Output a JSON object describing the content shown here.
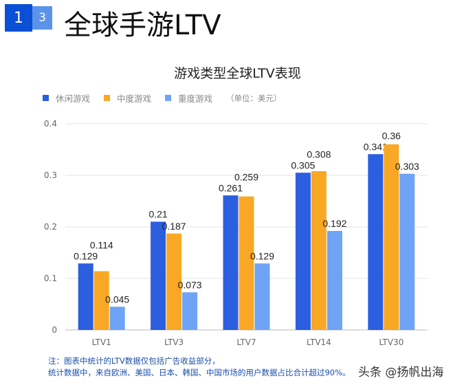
{
  "header": {
    "badge_1": "1",
    "badge_2": "3",
    "title": "全球手游LTV"
  },
  "chart_data": {
    "type": "bar",
    "title": "游戏类型全球LTV表现",
    "unit_note": "（单位：美元）",
    "categories": [
      "LTV1",
      "LTV3",
      "LTV7",
      "LTV14",
      "LTV30"
    ],
    "series": [
      {
        "name": "休闲游戏",
        "color": "#2b5fe0",
        "values": [
          0.129,
          0.21,
          0.261,
          0.305,
          0.341
        ]
      },
      {
        "name": "中度游戏",
        "color": "#f9a825",
        "values": [
          0.114,
          0.187,
          0.259,
          0.308,
          0.36
        ]
      },
      {
        "name": "重度游戏",
        "color": "#6fa3f5",
        "values": [
          0.045,
          0.073,
          0.129,
          0.192,
          0.303
        ]
      }
    ],
    "ylim": [
      0,
      0.4
    ],
    "yticks": [
      "0",
      "0.1",
      "0.2",
      "0.3",
      "0.4"
    ],
    "grid": true,
    "legend": "top-left"
  },
  "footer": {
    "note_line1": "注：图表中统计的LTV数据仅包括广告收益部分，",
    "note_line2": "统计数据中，来自欧洲、美国、日本、韩国、中国市场的用户数据占比合计超过90%。",
    "watermark": "头条 @扬帆出海"
  }
}
